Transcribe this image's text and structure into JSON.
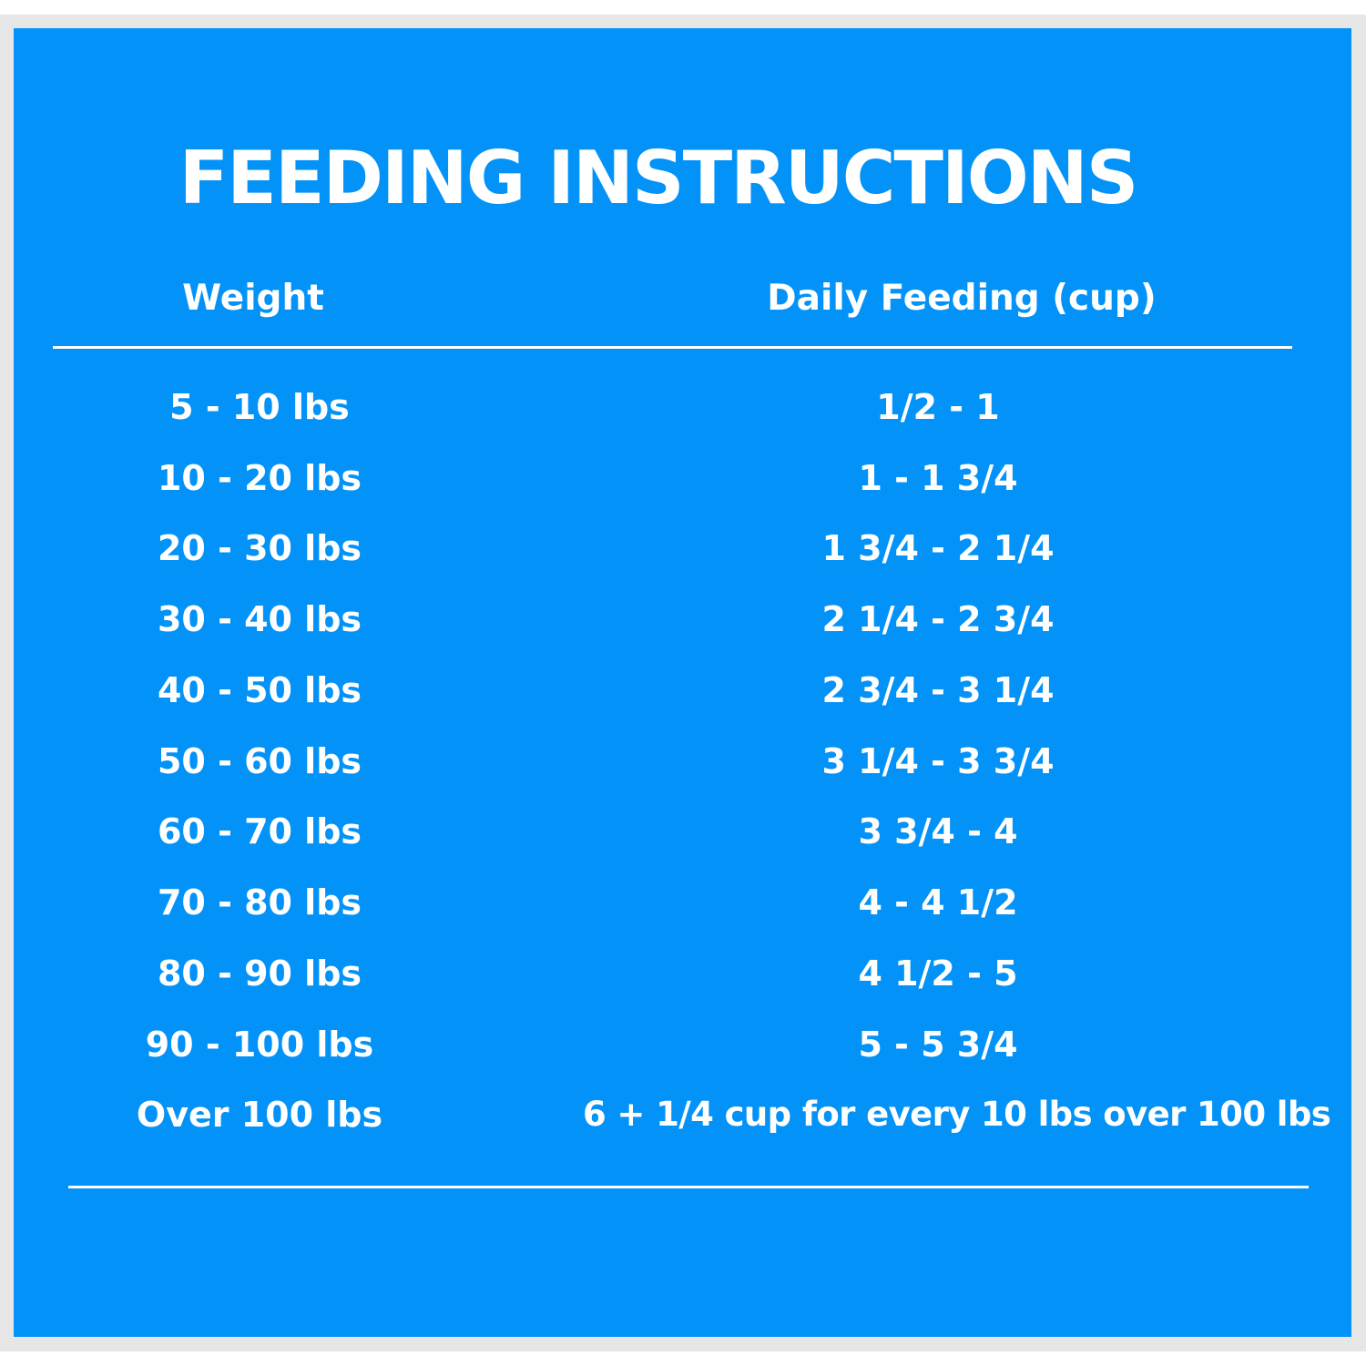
{
  "title": "FEEDING INSTRUCTIONS",
  "headers": {
    "weight": "Weight",
    "feeding": "Daily Feeding (cup)"
  },
  "rows": [
    {
      "weight": "5 - 10 lbs",
      "feeding": "1/2 - 1"
    },
    {
      "weight": "10 - 20 lbs",
      "feeding": "1 - 1 3/4"
    },
    {
      "weight": "20 - 30 lbs",
      "feeding": "1 3/4 - 2 1/4"
    },
    {
      "weight": "30 - 40 lbs",
      "feeding": "2 1/4 - 2 3/4"
    },
    {
      "weight": "40 - 50 lbs",
      "feeding": "2 3/4 - 3 1/4"
    },
    {
      "weight": "50 - 60 lbs",
      "feeding": "3 1/4 - 3 3/4"
    },
    {
      "weight": "60 - 70 lbs",
      "feeding": "3 3/4 - 4"
    },
    {
      "weight": "70 - 80 lbs",
      "feeding": "4 - 4 1/2"
    },
    {
      "weight": "80 - 90 lbs",
      "feeding": "4 1/2 - 5"
    },
    {
      "weight": "90 - 100 lbs",
      "feeding": "5 - 5 3/4"
    },
    {
      "weight": "Over 100 lbs",
      "feeding": "6 + 1/4 cup for every 10 lbs over 100 lbs"
    }
  ],
  "colors": {
    "panel": "#0392f7",
    "border": "#e6e6e6",
    "text": "#ffffff"
  }
}
